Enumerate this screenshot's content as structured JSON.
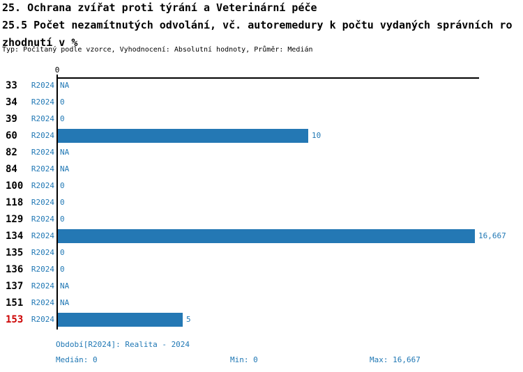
{
  "header": {
    "title_line1": "25. Ochrana zvířat proti týrání a Veterinární péče",
    "title_line2": "25.5 Počet nezamítnutých odvolání, vč. autoremedury k počtu vydaných správních ro",
    "title_line3": "zhodnutí v %",
    "subtitle": "Typ: Počítaný podle vzorce, Vyhodnocení: Absolutní hodnoty, Průměr: Medián"
  },
  "chart_data": {
    "type": "bar",
    "orientation": "horizontal",
    "title": "25.5 Počet nezamítnutých odvolání, vč. autoremedury k počtu vydaných správních rozhodnutí v %",
    "axis_zero_label": "0",
    "xlim": [
      0,
      16.667
    ],
    "grid": false,
    "categories": [
      "33",
      "34",
      "39",
      "60",
      "82",
      "84",
      "100",
      "118",
      "129",
      "134",
      "135",
      "136",
      "137",
      "151",
      "153"
    ],
    "series": [
      {
        "name": "R2024",
        "values": [
          null,
          0,
          0,
          10,
          null,
          null,
          0,
          0,
          0,
          16.667,
          0,
          0,
          null,
          null,
          5
        ]
      }
    ],
    "rows": [
      {
        "id": "33",
        "period": "R2024",
        "value": null,
        "display": "NA",
        "highlight": false
      },
      {
        "id": "34",
        "period": "R2024",
        "value": 0,
        "display": "0",
        "highlight": false
      },
      {
        "id": "39",
        "period": "R2024",
        "value": 0,
        "display": "0",
        "highlight": false
      },
      {
        "id": "60",
        "period": "R2024",
        "value": 10,
        "display": "10",
        "highlight": false
      },
      {
        "id": "82",
        "period": "R2024",
        "value": null,
        "display": "NA",
        "highlight": false
      },
      {
        "id": "84",
        "period": "R2024",
        "value": null,
        "display": "NA",
        "highlight": false
      },
      {
        "id": "100",
        "period": "R2024",
        "value": 0,
        "display": "0",
        "highlight": false
      },
      {
        "id": "118",
        "period": "R2024",
        "value": 0,
        "display": "0",
        "highlight": false
      },
      {
        "id": "129",
        "period": "R2024",
        "value": 0,
        "display": "0",
        "highlight": false
      },
      {
        "id": "134",
        "period": "R2024",
        "value": 16.667,
        "display": "16,667",
        "highlight": false
      },
      {
        "id": "135",
        "period": "R2024",
        "value": 0,
        "display": "0",
        "highlight": false
      },
      {
        "id": "136",
        "period": "R2024",
        "value": 0,
        "display": "0",
        "highlight": false
      },
      {
        "id": "137",
        "period": "R2024",
        "value": null,
        "display": "NA",
        "highlight": false
      },
      {
        "id": "151",
        "period": "R2024",
        "value": null,
        "display": "NA",
        "highlight": false
      },
      {
        "id": "153",
        "period": "R2024",
        "value": 5,
        "display": "5",
        "highlight": true
      }
    ]
  },
  "footer": {
    "period_label": "Období[R2024]: Realita - 2024",
    "median_label": "Medián: 0",
    "min_label": "Min: 0",
    "max_label": "Max: 16,667"
  },
  "colors": {
    "bar": "#2478b4",
    "blue_text": "#1f77b4",
    "highlight_red": "#cc0000",
    "axis": "#000000"
  }
}
